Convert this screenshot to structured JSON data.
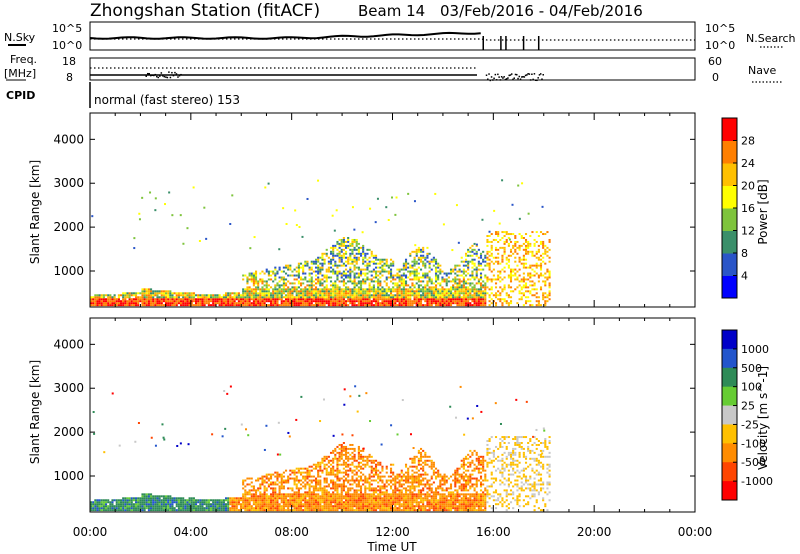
{
  "header": {
    "station": "Zhongshan Station (fitACF)",
    "beam": "Beam 14",
    "dates": "03/Feb/2016 - 04/Feb/2016"
  },
  "top_panels": {
    "nsky_label": "N.Sky",
    "nsky_ticks": [
      "10^5",
      "10^0"
    ],
    "nsearch_label": "N.Search",
    "nsearch_ticks": [
      "10^5",
      "10^0"
    ],
    "freq_label": "Freq.",
    "freq_unit": "[MHz]",
    "freq_ticks": [
      "18",
      "8"
    ],
    "nave_label": "Nave",
    "nave_ticks": [
      "60",
      "0"
    ],
    "cpid_label": "CPID",
    "cpid_text": "normal (fast stereo) 153"
  },
  "x_axis": {
    "label": "Time UT",
    "ticks": [
      "00:00",
      "04:00",
      "08:00",
      "12:00",
      "16:00",
      "20:00",
      "00:00"
    ]
  },
  "colors": {
    "power_scale": [
      "#0000ff",
      "#2a55c8",
      "#3a8f6a",
      "#7ec43c",
      "#ffff00",
      "#ffc000",
      "#ff7f00",
      "#ff0000"
    ],
    "velocity_scale": [
      "#0000c8",
      "#2255cc",
      "#2e8b57",
      "#66cc33",
      "#c8c8c8",
      "#ffc000",
      "#ff8c00",
      "#ff4500",
      "#ff0000"
    ]
  },
  "chart_data": [
    {
      "type": "heatmap",
      "panel": "power",
      "ylabel": "Slant Range [km]",
      "y_ticks": [
        1000,
        2000,
        3000,
        4000
      ],
      "ylim": [
        180,
        4600
      ],
      "xlim_hours": [
        0,
        24
      ],
      "colorbar_label": "Power [dB]",
      "colorbar_ticks": [
        "4",
        "8",
        "12",
        "16",
        "20",
        "24",
        "28"
      ],
      "colorbar_range": [
        0,
        32
      ]
    },
    {
      "type": "heatmap",
      "panel": "velocity",
      "ylabel": "Slant Range [km]",
      "y_ticks": [
        1000,
        2000,
        3000,
        4000
      ],
      "ylim": [
        180,
        4600
      ],
      "xlim_hours": [
        0,
        24
      ],
      "colorbar_label": "Velocity [m s^-1]",
      "colorbar_ticks": [
        "1000",
        "500",
        "100",
        "25",
        "-25",
        "-100",
        "-500",
        "-1000"
      ]
    }
  ]
}
